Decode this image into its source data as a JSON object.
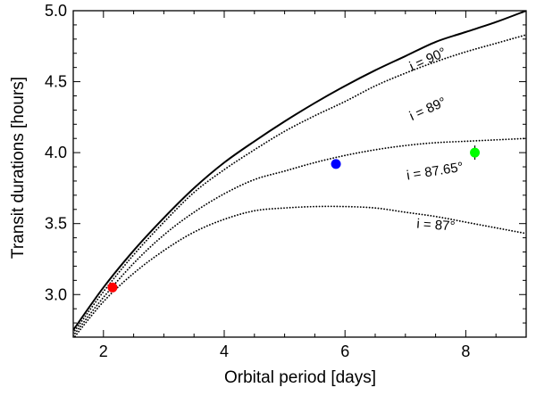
{
  "chart_data": {
    "type": "line",
    "xlabel": "Orbital period [days]",
    "ylabel": "Transit durations [hours]",
    "xlim": [
      1.5,
      9.0
    ],
    "ylim": [
      2.7,
      5.0
    ],
    "x_ticks": [
      "2",
      "4",
      "6",
      "8"
    ],
    "x_tick_values": [
      2,
      4,
      6,
      8
    ],
    "y_ticks": [
      "3.0",
      "3.5",
      "4.0",
      "4.5",
      "5.0"
    ],
    "y_tick_values": [
      3.0,
      3.5,
      4.0,
      4.5,
      5.0
    ],
    "grid": false,
    "series": [
      {
        "name": "i = 90°",
        "style": "solid",
        "x": [
          1.5,
          2.0,
          2.5,
          3.0,
          3.5,
          4.0,
          4.5,
          5.0,
          5.5,
          6.0,
          6.5,
          7.0,
          7.5,
          8.0,
          8.5,
          9.0
        ],
        "y": [
          2.75,
          3.05,
          3.31,
          3.54,
          3.75,
          3.93,
          4.08,
          4.22,
          4.35,
          4.47,
          4.58,
          4.68,
          4.78,
          4.85,
          4.92,
          5.0
        ]
      },
      {
        "name": "i = 89°",
        "style": "dotted",
        "x": [
          1.5,
          2.0,
          2.5,
          3.0,
          3.5,
          4.0,
          4.5,
          5.0,
          5.5,
          6.0,
          6.5,
          7.0,
          7.5,
          8.0,
          8.5,
          9.0
        ],
        "y": [
          2.73,
          3.02,
          3.28,
          3.51,
          3.72,
          3.88,
          4.02,
          4.15,
          4.26,
          4.36,
          4.47,
          4.56,
          4.64,
          4.71,
          4.77,
          4.83
        ]
      },
      {
        "name": "i = 87.65°",
        "style": "dotted",
        "x": [
          1.5,
          2.0,
          2.5,
          3.0,
          3.5,
          4.0,
          4.5,
          5.0,
          5.5,
          6.0,
          6.5,
          7.0,
          7.5,
          8.0,
          8.5,
          9.0
        ],
        "y": [
          2.71,
          2.98,
          3.22,
          3.42,
          3.58,
          3.71,
          3.81,
          3.87,
          3.93,
          3.98,
          4.02,
          4.05,
          4.07,
          4.08,
          4.09,
          4.1
        ]
      },
      {
        "name": "i = 87°",
        "style": "dotted",
        "x": [
          1.5,
          2.0,
          2.5,
          3.0,
          3.5,
          4.0,
          4.5,
          5.0,
          5.5,
          6.0,
          6.5,
          7.0,
          7.5,
          8.0,
          8.5,
          9.0
        ],
        "y": [
          2.69,
          2.95,
          3.15,
          3.31,
          3.44,
          3.53,
          3.59,
          3.61,
          3.62,
          3.62,
          3.61,
          3.58,
          3.55,
          3.51,
          3.47,
          3.43
        ]
      }
    ],
    "points": [
      {
        "x": 2.15,
        "y": 3.05,
        "yerr": 0.01,
        "color": "#ff0000"
      },
      {
        "x": 5.85,
        "y": 3.92,
        "yerr": 0.01,
        "color": "#0000ff"
      },
      {
        "x": 8.15,
        "y": 4.0,
        "yerr": 0.05,
        "color": "#00ff00"
      }
    ],
    "annotations": [
      {
        "text": "i = 90°",
        "x": 7.4,
        "y": 4.63,
        "angle": -24
      },
      {
        "text": "i = 89°",
        "x": 7.4,
        "y": 4.28,
        "angle": -24
      },
      {
        "text": "i = 87.65°",
        "x": 7.5,
        "y": 3.84,
        "angle": -9
      },
      {
        "text": "i = 87°",
        "x": 7.5,
        "y": 3.46,
        "angle": 4
      }
    ]
  }
}
